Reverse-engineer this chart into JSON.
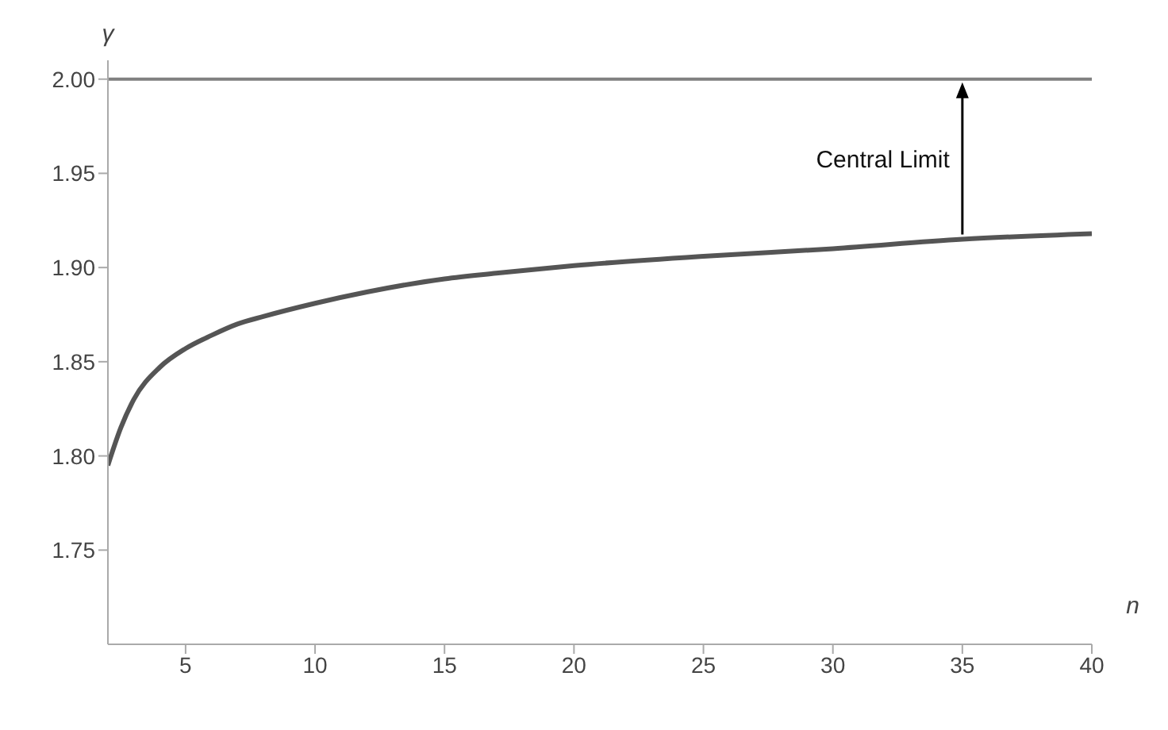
{
  "chart_data": {
    "type": "line",
    "xlabel": "n",
    "ylabel": "γ",
    "x": [
      2,
      2.5,
      3,
      4,
      5,
      6,
      7,
      8,
      10,
      12,
      15,
      17,
      20,
      25,
      30,
      35,
      40
    ],
    "series": [
      {
        "color": "#555555",
        "values": [
          1.795,
          1.815,
          1.83,
          1.847,
          1.857,
          1.864,
          1.87,
          1.874,
          1.881,
          1.887,
          1.894,
          1.897,
          1.901,
          1.906,
          1.91,
          1.915,
          1.918
        ]
      }
    ],
    "xlim": [
      2,
      40
    ],
    "xticks": [
      5,
      10,
      15,
      20,
      25,
      30,
      35,
      40
    ],
    "ylim": [
      1.7,
      2.01
    ],
    "yticks": [
      {
        "value": 1.75,
        "label": "1.75"
      },
      {
        "value": 1.8,
        "label": "1.80"
      },
      {
        "value": 1.85,
        "label": "1.85"
      },
      {
        "value": 1.9,
        "label": "1.90"
      },
      {
        "value": 1.95,
        "label": "1.95"
      },
      {
        "value": 2,
        "label": "2.00"
      }
    ],
    "ref_lines": [
      {
        "axis": "y",
        "value": 2,
        "color": "#808080"
      }
    ],
    "annotations": [
      {
        "text": "Central Limit",
        "x": 35,
        "y": 2
      }
    ],
    "grid": false,
    "legend": false,
    "marker": "none",
    "line_style": "solid"
  }
}
